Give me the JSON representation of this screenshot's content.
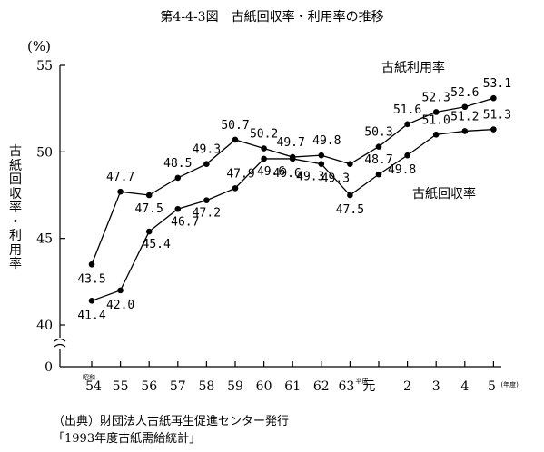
{
  "chart_data": {
    "type": "line",
    "title": "第4-4-3図　古紙回収率・利用率の推移",
    "ylabel": "古紙回収率・利用率",
    "yunit": "(%)",
    "ylim": [
      40,
      55
    ],
    "yticks": [
      "55",
      "50",
      "45",
      "40",
      "0"
    ],
    "categories": [
      "昭和54",
      "55",
      "56",
      "57",
      "58",
      "59",
      "60",
      "61",
      "62",
      "63",
      "平成元",
      "2",
      "3",
      "4",
      "5"
    ],
    "category_labels": [
      {
        "main": "54",
        "note": "昭和"
      },
      {
        "main": "55",
        "note": ""
      },
      {
        "main": "56",
        "note": ""
      },
      {
        "main": "57",
        "note": ""
      },
      {
        "main": "58",
        "note": ""
      },
      {
        "main": "59",
        "note": ""
      },
      {
        "main": "60",
        "note": ""
      },
      {
        "main": "61",
        "note": ""
      },
      {
        "main": "62",
        "note": ""
      },
      {
        "main": "63",
        "note": "平成"
      },
      {
        "main": "元",
        "note": ""
      },
      {
        "main": "2",
        "note": ""
      },
      {
        "main": "3",
        "note": ""
      },
      {
        "main": "4",
        "note": ""
      },
      {
        "main": "5",
        "note": "(年度)"
      }
    ],
    "series": [
      {
        "name": "古紙利用率",
        "values": [
          43.5,
          47.7,
          47.5,
          48.5,
          49.3,
          50.7,
          50.2,
          49.7,
          49.8,
          49.3,
          50.3,
          51.6,
          52.3,
          52.6,
          53.1
        ],
        "labels": [
          "43.5",
          "47.7",
          "47.5",
          "48.5",
          "49.3",
          "50.7",
          "50.2",
          "49.7",
          "49.8",
          "49.3",
          "50.3",
          "51.6",
          "52.3",
          "52.6",
          "53.1"
        ]
      },
      {
        "name": "古紙回収率",
        "values": [
          41.4,
          42.0,
          45.4,
          46.7,
          47.2,
          47.9,
          49.6,
          49.6,
          49.3,
          47.5,
          48.7,
          49.8,
          51.0,
          51.2,
          51.3
        ],
        "labels": [
          "41.4",
          "42.0",
          "45.4",
          "46.7",
          "47.2",
          "47.9",
          "49.6",
          "49.6",
          "49.3",
          "47.5",
          "48.7",
          "49.8",
          "51.0",
          "51.2",
          "51.3"
        ]
      }
    ],
    "axis_break": true,
    "grid": false,
    "line_color": "#000000"
  },
  "source": {
    "line1": "（出典）財団法人古紙再生促進センター発行",
    "line2": "「1993年度古紙需給統計」"
  }
}
